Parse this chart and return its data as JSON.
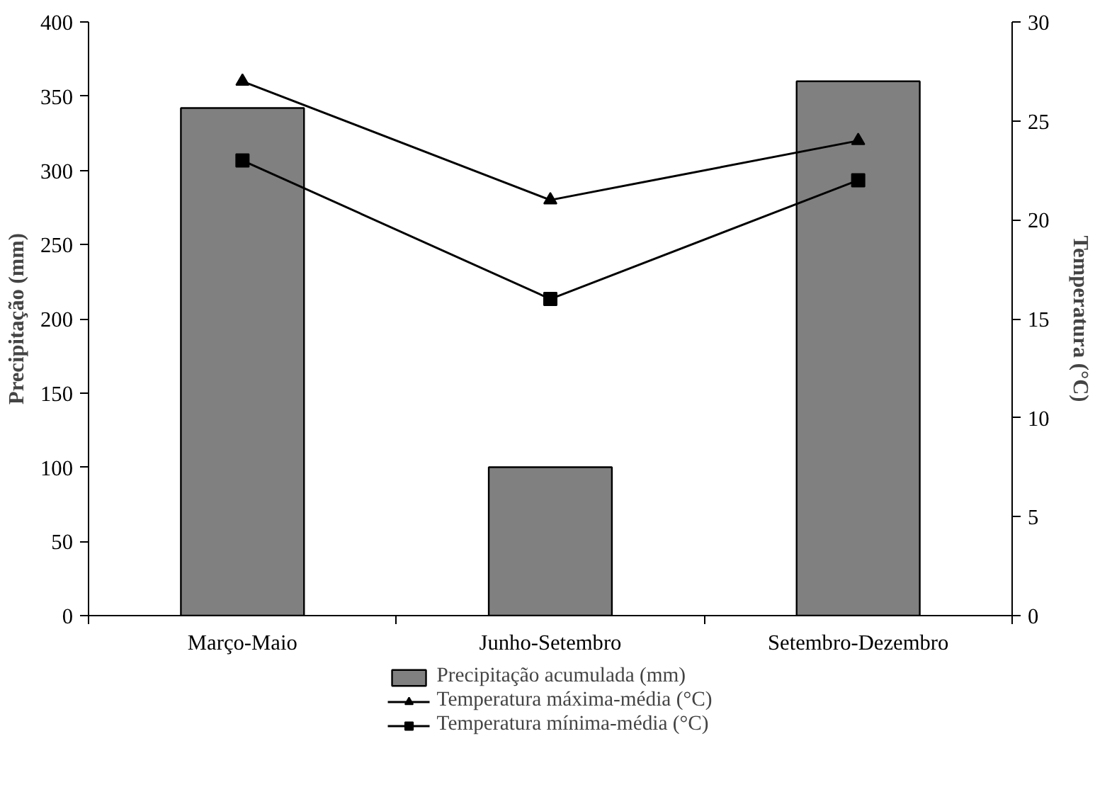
{
  "chart_data": {
    "type": "bar",
    "categories": [
      "Março-Maio",
      "Junho-Setembro",
      "Setembro-Dezembro"
    ],
    "ylabel": "Precipitação (mm)",
    "y2label": "Temperatura (°C)",
    "ylim": [
      0,
      400
    ],
    "yticks": [
      0,
      50,
      100,
      150,
      200,
      250,
      300,
      350,
      400
    ],
    "y2lim": [
      0,
      30
    ],
    "y2ticks": [
      0,
      5,
      10,
      15,
      20,
      25,
      30
    ],
    "legend": "bottom",
    "grid": false,
    "series": [
      {
        "name": "Precipitação acumulada (mm)",
        "type": "bar",
        "color": "#808080",
        "values": [
          342,
          100,
          360
        ]
      },
      {
        "name": "Temperatura máxima-média (°C)",
        "type": "line",
        "axis": "y2",
        "marker": "triangle",
        "color": "#000000",
        "values": [
          27,
          21,
          24
        ]
      },
      {
        "name": "Temperatura mínima-média (°C)",
        "type": "line",
        "axis": "y2",
        "marker": "square",
        "color": "#000000",
        "values": [
          23,
          16,
          22
        ]
      }
    ]
  }
}
